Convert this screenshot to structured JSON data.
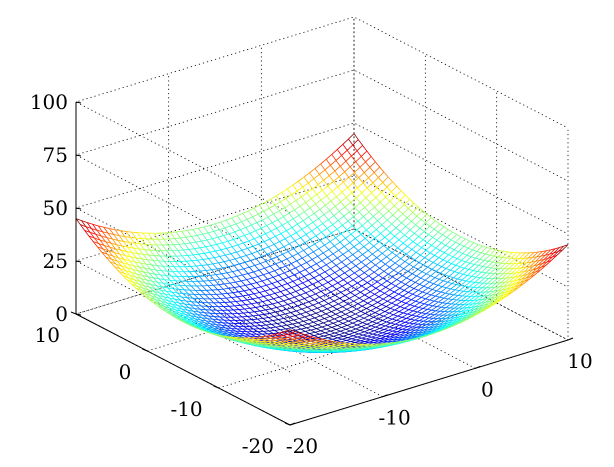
{
  "chart_data": {
    "type": "mesh-3d",
    "surface": {
      "x_range": [
        -20,
        10
      ],
      "y_range": [
        -20,
        10
      ],
      "z_function": "z = 0.1 * ((x + 5)^2 + (y + 5)^2)",
      "grid_lines_per_axis": 50,
      "z_at_corners": [
        {
          "x": -20,
          "y": 10,
          "z": 45
        },
        {
          "x": 10,
          "y": 10,
          "z": 45
        },
        {
          "x": -20,
          "y": -20,
          "z": 45
        },
        {
          "x": 10,
          "y": -20,
          "z": 45
        }
      ],
      "z_min_at_center": 0
    },
    "colormap": "jet",
    "axes": {
      "x": {
        "label": "",
        "ticks": [
          -20,
          -10,
          0,
          10
        ],
        "tick_labels": [
          "-20",
          "-10",
          "0",
          "10"
        ],
        "lim": [
          -20,
          10
        ]
      },
      "y": {
        "label": "",
        "ticks": [
          -20,
          -10,
          0,
          10
        ],
        "tick_labels": [
          "-20",
          "-10",
          "0",
          "10"
        ],
        "lim": [
          -20,
          10
        ]
      },
      "z": {
        "label": "",
        "ticks": [
          0,
          25,
          50,
          75,
          100
        ],
        "tick_labels": [
          "0",
          "25",
          "50",
          "75",
          "100"
        ],
        "lim": [
          0,
          100
        ]
      }
    },
    "grid": true,
    "box": false,
    "title": ""
  }
}
